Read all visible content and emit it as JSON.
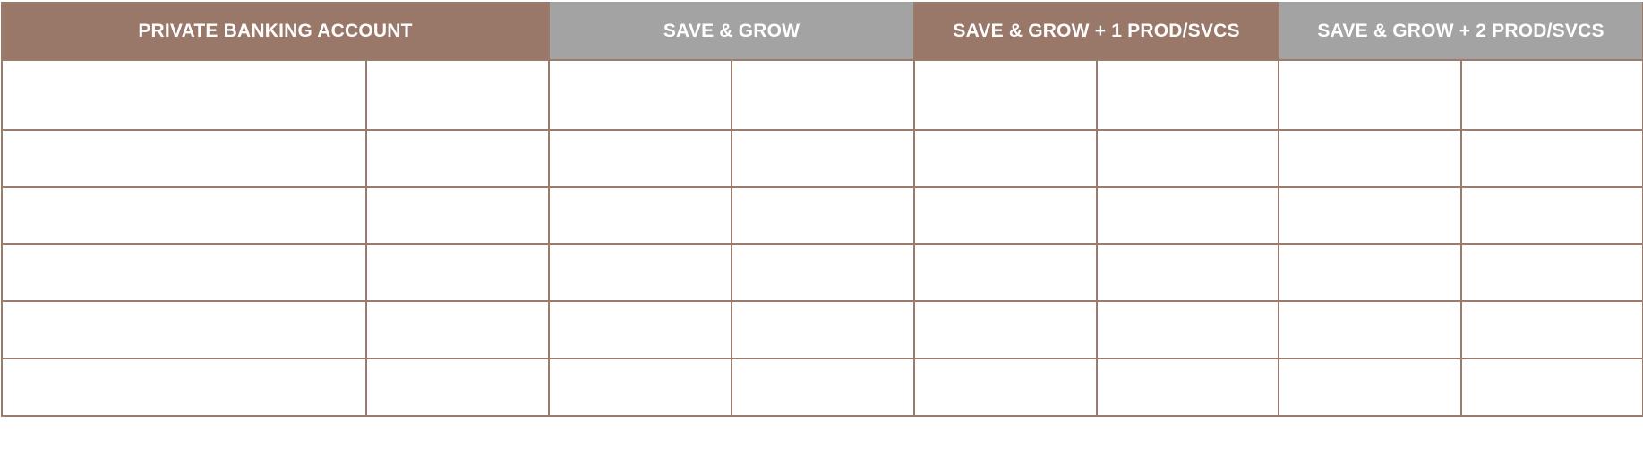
{
  "header": {
    "columns": [
      {
        "label": "PRIVATE BANKING ACCOUNT",
        "color": "#9a7869"
      },
      {
        "label": "SAVE & GROW",
        "color": "#a3a3a3"
      },
      {
        "label": "SAVE & GROW + 1 PROD/SVCS",
        "color": "#9a7869"
      },
      {
        "label": "SAVE & GROW + 2 PROD/SVCS",
        "color": "#a3a3a3"
      }
    ]
  },
  "table": {
    "border_color": "#9b7b6b",
    "rows": [
      [
        "",
        "",
        "",
        "",
        "",
        "",
        "",
        ""
      ],
      [
        "",
        "",
        "",
        "",
        "",
        "",
        "",
        ""
      ],
      [
        "",
        "",
        "",
        "",
        "",
        "",
        "",
        ""
      ],
      [
        "",
        "",
        "",
        "",
        "",
        "",
        "",
        ""
      ],
      [
        "",
        "",
        "",
        "",
        "",
        "",
        "",
        ""
      ],
      [
        "",
        "",
        "",
        "",
        "",
        "",
        "",
        ""
      ]
    ]
  }
}
